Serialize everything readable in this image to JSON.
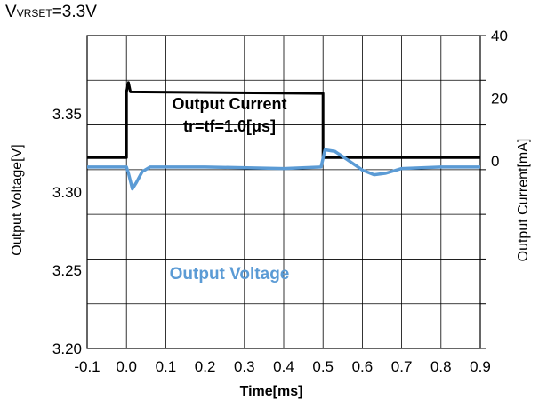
{
  "condition": {
    "prefix": "V",
    "subscript": "VRSET",
    "suffix": "=3.3V"
  },
  "colors": {
    "current": "#000000",
    "voltage": "#5b9bd5",
    "grid": "#000000",
    "axis": "#000000"
  },
  "chart_data": {
    "type": "line",
    "xlabel": "Time[ms]",
    "ylabel_left": "Output Voltage[V]",
    "ylabel_right": "Output Current[mA]",
    "x_ticks": [
      "-0.1",
      "0.0",
      "0.1",
      "0.2",
      "0.3",
      "0.4",
      "0.5",
      "0.6",
      "0.7",
      "0.8",
      "0.9"
    ],
    "xlim": [
      -0.1,
      0.9
    ],
    "y_left_ticks": [
      "3.20",
      "3.25",
      "3.30",
      "3.35"
    ],
    "y_left_lim": [
      3.2,
      3.4
    ],
    "y_right_ticks": [
      "0",
      "20",
      "40"
    ],
    "y_right_lim": [
      -60,
      40
    ],
    "grid": true,
    "annotations": {
      "current_line1": "Output Current",
      "current_line2": "tr=tf=1.0[μs]",
      "voltage": "Output Voltage"
    },
    "series": [
      {
        "axis": "right",
        "color": "#000000",
        "points": [
          [
            -0.1,
            1
          ],
          [
            0.0,
            1
          ],
          [
            0.0,
            22
          ],
          [
            0.005,
            25
          ],
          [
            0.01,
            22
          ],
          [
            0.5,
            21.5
          ],
          [
            0.5,
            1
          ],
          [
            0.9,
            1
          ]
        ]
      },
      {
        "axis": "left",
        "color": "#5b9bd5",
        "points": [
          [
            -0.1,
            3.316
          ],
          [
            0.0,
            3.316
          ],
          [
            0.005,
            3.312
          ],
          [
            0.015,
            3.302
          ],
          [
            0.025,
            3.306
          ],
          [
            0.04,
            3.313
          ],
          [
            0.06,
            3.316
          ],
          [
            0.2,
            3.316
          ],
          [
            0.4,
            3.315
          ],
          [
            0.495,
            3.316
          ],
          [
            0.505,
            3.327
          ],
          [
            0.53,
            3.326
          ],
          [
            0.56,
            3.321
          ],
          [
            0.6,
            3.314
          ],
          [
            0.63,
            3.311
          ],
          [
            0.66,
            3.312
          ],
          [
            0.7,
            3.315
          ],
          [
            0.8,
            3.316
          ],
          [
            0.9,
            3.316
          ]
        ]
      }
    ]
  }
}
